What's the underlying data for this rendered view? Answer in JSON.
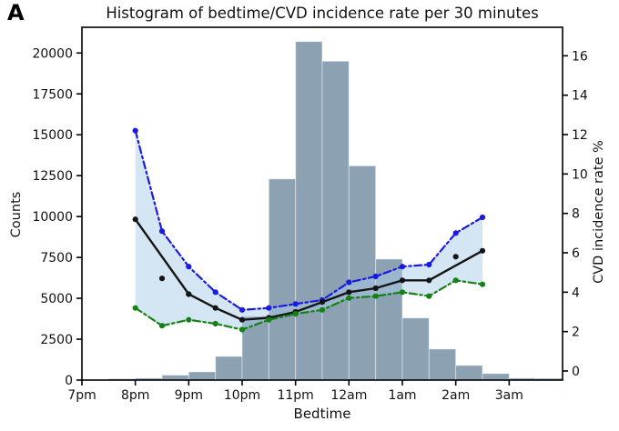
{
  "panel_label": "A",
  "title": "Histogram of bedtime/CVD incidence rate per 30 minutes",
  "axes": {
    "x": {
      "label": "Bedtime",
      "tick_labels": [
        "7pm",
        "8pm",
        "9pm",
        "10pm",
        "11pm",
        "12am",
        "1am",
        "2am",
        "3am"
      ],
      "tick_minutes": [
        0,
        60,
        120,
        180,
        240,
        300,
        360,
        420,
        480
      ],
      "range_minutes_after_7pm": [
        0,
        540
      ]
    },
    "y_left": {
      "label": "Counts",
      "tick_labels": [
        "0",
        "2500",
        "5000",
        "7500",
        "10000",
        "12500",
        "15000",
        "17500",
        "20000"
      ],
      "range": [
        0,
        21600
      ]
    },
    "y_right": {
      "label": "CVD incidence rate %",
      "tick_labels": [
        "0",
        "2",
        "4",
        "6",
        "8",
        "10",
        "12",
        "14",
        "16"
      ],
      "range": [
        -0.5,
        17.5
      ]
    }
  },
  "chart_data": {
    "type": "histogram+lines",
    "x_unit": "minutes after 7pm",
    "histogram": {
      "series_name": "Bedtime counts per 30 minutes",
      "axis": "y_left",
      "bin_width_minutes": 30,
      "bin_starts": [
        0,
        30,
        60,
        90,
        120,
        150,
        180,
        210,
        240,
        270,
        300,
        330,
        360,
        390,
        420,
        450,
        480,
        510
      ],
      "bin_start_labels": [
        "7:00pm",
        "7:30pm",
        "8:00pm",
        "8:30pm",
        "9:00pm",
        "9:30pm",
        "10:00pm",
        "10:30pm",
        "11:00pm",
        "11:30pm",
        "12:00am",
        "12:30am",
        "1:00am",
        "1:30am",
        "2:00am",
        "2:30am",
        "3:00am",
        "3:30am"
      ],
      "counts": [
        0,
        80,
        120,
        300,
        500,
        1450,
        3900,
        12300,
        20700,
        19500,
        13100,
        7400,
        3800,
        1900,
        900,
        400,
        120,
        110
      ]
    },
    "line_x_minutes": [
      60,
      90,
      120,
      150,
      180,
      210,
      240,
      270,
      300,
      330,
      360,
      390,
      420,
      450
    ],
    "line_x_labels": [
      "8:00pm",
      "8:30pm",
      "9:00pm",
      "9:30pm",
      "10:00pm",
      "10:30pm",
      "11:00pm",
      "11:30pm",
      "12:00am",
      "12:30am",
      "1:00am",
      "1:30am",
      "2:00am",
      "2:30am"
    ],
    "series": [
      {
        "name": "CVD incidence rate upper bound",
        "axis": "y_right",
        "style": "dash-dot",
        "color_key": "blue",
        "values": [
          12.2,
          7.1,
          5.3,
          4.0,
          3.1,
          3.2,
          3.4,
          3.6,
          4.5,
          4.8,
          5.3,
          5.4,
          7.0,
          7.8
        ]
      },
      {
        "name": "CVD incidence rate",
        "axis": "y_right",
        "style": "solid",
        "color_key": "black",
        "values": [
          7.7,
          4.7,
          3.9,
          3.2,
          2.6,
          2.7,
          3.0,
          3.5,
          4.0,
          4.2,
          4.6,
          4.6,
          5.8,
          6.1
        ],
        "line_skips_indices": [
          1,
          12
        ]
      },
      {
        "name": "CVD incidence rate lower bound",
        "axis": "y_right",
        "style": "dash-dot",
        "color_key": "green",
        "values": [
          3.2,
          2.3,
          2.6,
          2.4,
          2.1,
          2.6,
          2.9,
          3.1,
          3.7,
          3.8,
          4.0,
          3.8,
          4.6,
          4.4
        ]
      }
    ],
    "band": {
      "between": [
        "CVD incidence rate upper bound",
        "CVD incidence rate lower bound"
      ],
      "x_range_minutes": [
        60,
        450
      ]
    }
  },
  "colors": {
    "bar": "#8ca1b2",
    "bar_edge": "rgba(255,255,255,0.45)",
    "band": "rgba(170,205,233,0.5)",
    "blue": "#1a1ae0",
    "green": "#158015",
    "black": "#141414",
    "axis": "#000000",
    "background": "#ffffff"
  }
}
